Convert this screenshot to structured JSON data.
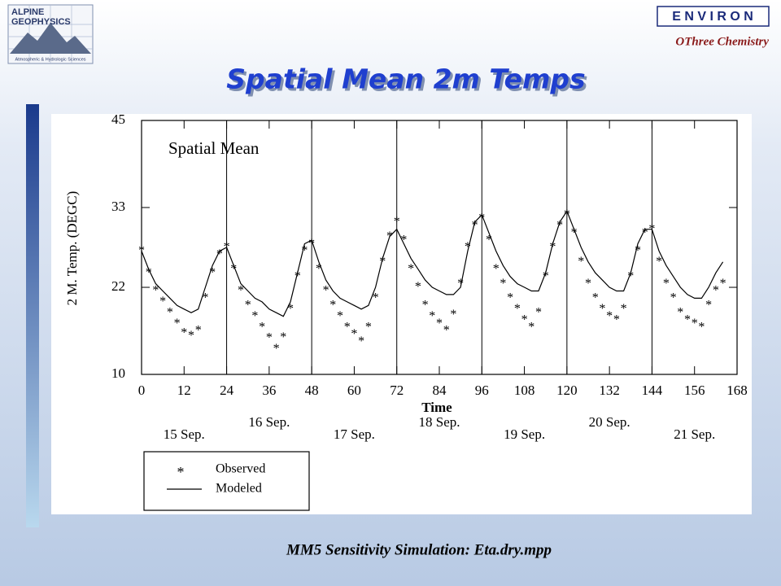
{
  "header": {
    "logo_line1": "ALPINE",
    "logo_line2": "GEOPHYSICS",
    "logo_tagline": "Atmospheric & Hydrologic Sciences",
    "brand": "E N V I R O N",
    "subbrand": "OThree Chemistry",
    "title": "Spatial Mean 2m Temps"
  },
  "footer": "MM5 Sensitivity Simulation:  Eta.dry.mpp",
  "chart_data": {
    "type": "line",
    "title": "Spatial Mean",
    "y_label": "2 M. Temp. (DEGC)",
    "x_label": "Time",
    "xlim": [
      0,
      168
    ],
    "xticks": [
      0,
      12,
      24,
      36,
      48,
      60,
      72,
      84,
      96,
      108,
      120,
      132,
      144,
      156,
      168
    ],
    "ylim": [
      10,
      45
    ],
    "yticks": [
      10,
      22,
      33,
      45
    ],
    "vlines": [
      24,
      48,
      72,
      96,
      120,
      144
    ],
    "date_labels": [
      "15 Sep.",
      "16 Sep.",
      "17 Sep.",
      "18 Sep.",
      "19 Sep.",
      "20 Sep.",
      "21 Sep."
    ],
    "x": [
      0,
      2,
      4,
      6,
      8,
      10,
      12,
      14,
      16,
      18,
      20,
      22,
      24,
      26,
      28,
      30,
      32,
      34,
      36,
      38,
      40,
      42,
      44,
      46,
      48,
      50,
      52,
      54,
      56,
      58,
      60,
      62,
      64,
      66,
      68,
      70,
      72,
      74,
      76,
      78,
      80,
      82,
      84,
      86,
      88,
      90,
      92,
      94,
      96,
      98,
      100,
      102,
      104,
      106,
      108,
      110,
      112,
      114,
      116,
      118,
      120,
      122,
      124,
      126,
      128,
      130,
      132,
      134,
      136,
      138,
      140,
      142,
      144,
      146,
      148,
      150,
      152,
      154,
      156,
      158,
      160,
      162,
      164
    ],
    "series": [
      {
        "name": "Observed",
        "marker": "*",
        "color": "#000000",
        "values": [
          27.5,
          24.5,
          22,
          20.5,
          19,
          17.5,
          16.2,
          15.8,
          16.5,
          21,
          24.5,
          27,
          28,
          25,
          22,
          20,
          18.5,
          17,
          15.5,
          14,
          15.6,
          19.5,
          24,
          27.5,
          28.5,
          25,
          22,
          20,
          18.5,
          17,
          16,
          15,
          17,
          21,
          26,
          29.5,
          31.5,
          29,
          25,
          22.5,
          20,
          18.5,
          17.5,
          16.5,
          18.7,
          23,
          28,
          31,
          32,
          29,
          25,
          23,
          21,
          19.5,
          18,
          17,
          19,
          24,
          28,
          31,
          32.5,
          30,
          26,
          23,
          21,
          19.5,
          18.5,
          18,
          19.5,
          24,
          27.5,
          30,
          30.5,
          26,
          23,
          21,
          19,
          18,
          17.5,
          17,
          20,
          22,
          23
        ]
      },
      {
        "name": "Modeled",
        "color": "#000000",
        "values": [
          27,
          24.5,
          22.5,
          21.5,
          20.5,
          19.5,
          19,
          18.5,
          19,
          22,
          25,
          27,
          27.5,
          25,
          22.5,
          21.5,
          20.5,
          20,
          19,
          18.5,
          18,
          20,
          24,
          28,
          28.5,
          25.5,
          23,
          21.5,
          20.5,
          20,
          19.5,
          19,
          19.5,
          22,
          26,
          29,
          30,
          28,
          26,
          24.5,
          23,
          22,
          21.5,
          21,
          21,
          22,
          27,
          31,
          32,
          29.5,
          27,
          25,
          23.5,
          22.5,
          22,
          21.5,
          21.5,
          24,
          28,
          31,
          32.5,
          30,
          27.5,
          25.5,
          24,
          23,
          22,
          21.5,
          21.5,
          24,
          28,
          30,
          30,
          27,
          25,
          23.5,
          22,
          21,
          20.5,
          20.5,
          22,
          24,
          25.5
        ]
      }
    ]
  }
}
